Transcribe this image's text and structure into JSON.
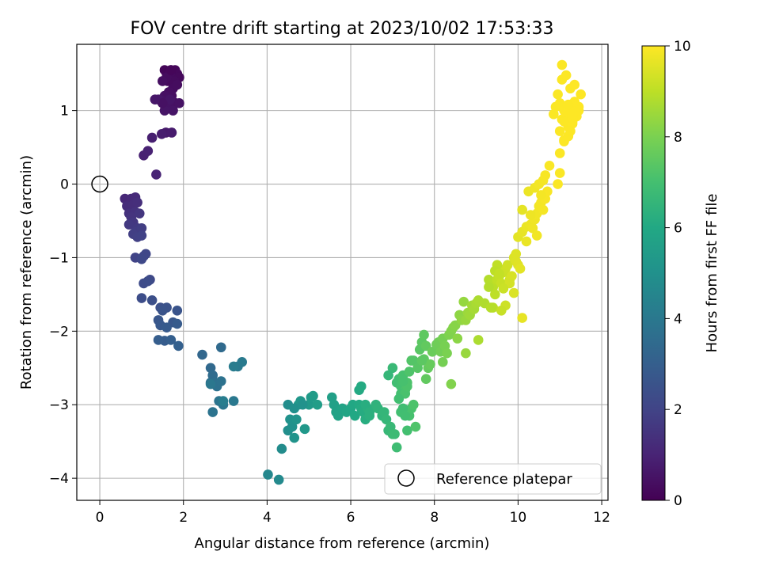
{
  "chart_data": {
    "type": "scatter",
    "title": "FOV centre drift starting at 2023/10/02 17:53:33",
    "xlabel": "Angular distance from reference (arcmin)",
    "ylabel": "Rotation from reference (arcmin)",
    "xlim": [
      -0.55,
      12.15
    ],
    "ylim": [
      -4.3,
      1.9
    ],
    "xticks": [
      0,
      2,
      4,
      6,
      8,
      10,
      12
    ],
    "xtick_labels": [
      "0",
      "2",
      "4",
      "6",
      "8",
      "10",
      "12"
    ],
    "yticks": [
      -4,
      -3,
      -2,
      -1,
      0,
      1
    ],
    "ytick_labels": [
      "−4",
      "−3",
      "−2",
      "−1",
      "0",
      "1"
    ],
    "grid": true,
    "legend": {
      "placement": "lower-right",
      "entries": [
        "Reference platepar"
      ]
    },
    "colorbar": {
      "label": "Hours from first FF file",
      "range": [
        0,
        10
      ],
      "ticks": [
        0,
        2,
        4,
        6,
        8,
        10
      ],
      "tick_labels": [
        "0",
        "2",
        "4",
        "6",
        "8",
        "10"
      ],
      "colormap": "viridis"
    },
    "reference_point": {
      "x": 0,
      "y": 0,
      "label": "Reference platepar"
    },
    "series": [
      {
        "x": [
          1.55,
          1.6,
          1.7,
          1.75,
          1.8,
          1.85,
          1.9,
          1.62,
          1.68,
          1.78,
          1.6,
          1.75,
          1.85,
          1.5,
          1.65,
          1.72,
          1.82,
          1.55,
          1.7,
          1.9,
          1.45,
          1.6,
          1.75,
          1.55,
          1.68,
          1.4,
          1.58,
          1.72,
          1.48,
          1.25,
          1.05,
          1.15,
          1.35,
          1.5,
          1.7,
          1.32,
          0.6,
          0.75,
          0.85,
          0.65,
          0.8,
          0.9,
          0.7,
          0.85,
          0.75,
          0.95,
          0.8,
          0.7,
          0.9,
          0.85,
          1.0,
          0.8,
          0.9,
          1.0,
          0.85,
          1.05,
          1.1,
          1.0,
          1.2,
          1.05,
          1.15,
          1.0,
          1.25,
          1.45,
          1.6,
          1.5,
          1.85,
          1.4,
          1.75,
          1.45,
          1.6,
          1.85,
          1.55,
          1.4,
          1.7,
          1.88,
          2.45,
          2.65,
          2.7,
          2.9,
          2.65,
          2.75,
          2.8,
          2.9,
          2.7,
          2.85,
          2.95,
          2.65,
          3.2,
          3.3,
          3.4,
          3.2,
          2.95,
          4.02,
          4.28,
          4.35,
          4.5,
          4.6,
          4.55,
          4.65,
          4.7,
          4.75,
          4.8,
          4.9,
          5.0,
          5.05,
          5.1,
          5.2,
          4.5,
          4.65,
          4.85,
          5.55,
          5.6,
          5.65,
          5.7,
          5.8,
          5.9,
          6.0,
          6.05,
          6.1,
          6.2,
          6.25,
          6.3,
          6.35,
          6.4,
          6.45,
          6.2,
          6.25,
          6.35,
          6.45,
          6.6,
          6.65,
          6.75,
          6.8,
          6.85,
          6.9,
          6.95,
          7.0,
          7.05,
          7.1,
          7.0,
          6.9,
          7.2,
          7.35,
          7.4,
          7.45,
          7.25,
          7.3,
          7.5,
          7.55,
          7.1,
          7.15,
          7.2,
          7.25,
          7.3,
          7.35,
          7.4,
          7.45,
          7.2,
          7.3,
          7.15,
          7.35,
          7.25,
          7.5,
          7.6,
          7.65,
          7.7,
          7.75,
          7.8,
          7.85,
          7.9,
          7.95,
          7.8,
          7.7,
          8.05,
          8.1,
          8.15,
          8.2,
          8.25,
          8.3,
          8.35,
          8.4,
          8.45,
          8.5,
          8.55,
          8.6,
          8.65,
          8.7,
          8.75,
          8.8,
          8.85,
          8.9,
          8.95,
          9.0,
          9.05,
          8.4,
          8.2,
          8.75,
          9.05,
          7.75,
          9.2,
          9.3,
          9.35,
          9.4,
          9.45,
          9.5,
          9.55,
          9.6,
          9.65,
          9.7,
          9.75,
          9.8,
          9.85,
          9.9,
          9.95,
          10.0,
          9.3,
          9.5,
          9.7,
          9.9,
          9.4,
          9.6,
          9.8,
          9.45,
          9.55,
          9.65,
          10.05,
          9.35,
          10.1,
          9.95,
          10.0,
          10.1,
          10.2,
          10.3,
          10.4,
          10.45,
          10.5,
          10.55,
          10.6,
          10.65,
          10.7,
          10.35,
          10.45,
          10.55,
          10.25,
          10.4,
          10.5,
          10.6,
          10.3,
          10.2,
          10.65,
          10.75,
          10.1,
          10.85,
          10.9,
          11.0,
          11.05,
          11.1,
          11.15,
          11.2,
          11.25,
          11.3,
          11.35,
          11.4,
          11.45,
          11.5,
          11.0,
          11.1,
          11.2,
          11.3,
          11.4,
          10.95,
          11.05,
          11.15,
          11.25,
          11.35,
          11.45,
          11.0,
          11.1,
          11.2,
          11.3,
          11.35,
          11.05,
          11.25,
          11.1,
          11.3,
          10.95,
          11.0,
          11.2
        ],
        "y": [
          1.55,
          1.5,
          1.55,
          1.45,
          1.55,
          1.5,
          1.45,
          1.4,
          1.5,
          1.4,
          1.45,
          1.3,
          1.35,
          1.4,
          1.25,
          1.2,
          1.1,
          1.2,
          1.1,
          1.1,
          1.15,
          1.05,
          1.0,
          1.0,
          1.15,
          1.15,
          0.7,
          0.7,
          0.68,
          0.63,
          0.39,
          0.45,
          0.13,
          1.1,
          1.55,
          1.15,
          -0.2,
          -0.2,
          -0.18,
          -0.3,
          -0.28,
          -0.25,
          -0.4,
          -0.38,
          -0.45,
          -0.4,
          -0.52,
          -0.55,
          -0.6,
          -0.65,
          -0.6,
          -0.68,
          -0.72,
          -0.7,
          -1.0,
          -0.98,
          -0.95,
          -1.02,
          -1.3,
          -1.35,
          -1.32,
          -1.55,
          -1.58,
          -1.68,
          -1.68,
          -1.72,
          -1.72,
          -1.85,
          -1.88,
          -1.92,
          -1.95,
          -1.9,
          -2.13,
          -2.12,
          -2.12,
          -2.2,
          -2.32,
          -2.5,
          -2.6,
          -2.22,
          -2.7,
          -2.7,
          -2.75,
          -2.68,
          -3.1,
          -2.95,
          -3.0,
          -2.72,
          -2.95,
          -2.48,
          -2.42,
          -2.48,
          -2.95,
          -3.95,
          -4.02,
          -3.6,
          -3.35,
          -3.3,
          -3.2,
          -3.45,
          -3.2,
          -3.0,
          -2.95,
          -3.33,
          -3.0,
          -2.9,
          -2.88,
          -3.0,
          -3.0,
          -3.05,
          -3.0,
          -2.9,
          -3.0,
          -3.1,
          -3.15,
          -3.05,
          -3.1,
          -3.05,
          -3.0,
          -3.15,
          -3.0,
          -3.05,
          -3.1,
          -3.2,
          -3.05,
          -3.15,
          -2.8,
          -2.75,
          -3.0,
          -3.1,
          -3.0,
          -3.05,
          -3.15,
          -3.1,
          -3.2,
          -3.35,
          -3.3,
          -3.4,
          -3.4,
          -3.58,
          -2.5,
          -2.6,
          -3.1,
          -3.35,
          -3.15,
          -3.05,
          -3.05,
          -3.15,
          -3.0,
          -3.3,
          -2.7,
          -2.65,
          -2.75,
          -2.6,
          -2.8,
          -2.7,
          -2.55,
          -2.4,
          -2.85,
          -2.85,
          -2.92,
          -2.75,
          -2.68,
          -2.4,
          -2.5,
          -2.25,
          -2.15,
          -2.38,
          -2.2,
          -2.5,
          -2.45,
          -2.28,
          -2.65,
          -2.4,
          -2.18,
          -2.15,
          -2.28,
          -2.1,
          -2.2,
          -2.3,
          -2.05,
          -2.0,
          -1.95,
          -1.92,
          -2.1,
          -1.78,
          -1.85,
          -1.6,
          -1.85,
          -1.75,
          -1.78,
          -1.65,
          -1.7,
          -1.62,
          -1.58,
          -2.72,
          -2.42,
          -2.3,
          -2.12,
          -2.05,
          -1.62,
          -1.3,
          -1.35,
          -1.4,
          -1.5,
          -1.3,
          -1.25,
          -1.35,
          -1.2,
          -1.15,
          -1.1,
          -1.3,
          -1.25,
          -1.0,
          -1.05,
          -1.1,
          -1.4,
          -1.1,
          -1.65,
          -1.48,
          -1.68,
          -1.72,
          -1.35,
          -1.18,
          -1.22,
          -1.42,
          -1.15,
          -1.68,
          -1.82,
          -0.95,
          -0.72,
          -0.65,
          -0.58,
          -0.55,
          -0.48,
          -0.4,
          -0.3,
          -0.25,
          -0.35,
          -0.2,
          -0.1,
          -0.6,
          -0.7,
          -0.15,
          -0.1,
          -0.05,
          0.0,
          0.05,
          -0.42,
          -0.78,
          0.12,
          0.25,
          -0.35,
          0.95,
          1.05,
          1.1,
          0.88,
          1.0,
          0.95,
          1.05,
          1.08,
          0.85,
          1.02,
          0.98,
          1.05,
          1.22,
          0.72,
          0.6,
          0.78,
          0.82,
          0.92,
          1.22,
          1.42,
          1.48,
          1.3,
          1.12,
          1.0,
          0.42,
          0.58,
          0.65,
          0.9,
          1.35,
          1.62,
          0.72,
          0.85,
          0.95,
          0.0,
          0.15,
          1.08
        ],
        "c": [
          0.1,
          0.12,
          0.14,
          0.16,
          0.18,
          0.2,
          0.22,
          0.24,
          0.26,
          0.28,
          0.3,
          0.32,
          0.34,
          0.36,
          0.38,
          0.4,
          0.42,
          0.44,
          0.46,
          0.48,
          0.5,
          0.52,
          0.54,
          0.56,
          0.58,
          0.62,
          0.7,
          0.75,
          0.8,
          0.85,
          0.9,
          0.95,
          1.0,
          0.45,
          0.15,
          0.6,
          1.1,
          1.15,
          1.2,
          1.25,
          1.3,
          1.35,
          1.4,
          1.45,
          1.5,
          1.55,
          1.6,
          1.65,
          1.7,
          1.75,
          1.8,
          1.85,
          1.9,
          1.95,
          2.0,
          2.05,
          2.1,
          2.15,
          2.2,
          2.25,
          2.3,
          2.35,
          2.4,
          2.45,
          2.5,
          2.55,
          2.6,
          2.65,
          2.7,
          2.75,
          2.8,
          2.85,
          2.9,
          2.95,
          3.0,
          3.05,
          3.3,
          3.4,
          3.5,
          3.45,
          3.6,
          3.65,
          3.7,
          3.75,
          3.8,
          3.85,
          3.9,
          3.95,
          4.0,
          4.05,
          4.1,
          4.15,
          4.2,
          4.6,
          4.7,
          4.8,
          4.9,
          5.0,
          5.05,
          5.1,
          5.15,
          5.2,
          5.25,
          5.3,
          5.35,
          5.4,
          5.45,
          5.5,
          4.85,
          4.95,
          5.05,
          5.6,
          5.65,
          5.7,
          5.75,
          5.8,
          5.85,
          5.9,
          5.95,
          6.0,
          6.05,
          6.1,
          6.15,
          6.2,
          6.25,
          6.3,
          6.05,
          6.1,
          6.2,
          6.3,
          6.4,
          6.45,
          6.5,
          6.55,
          6.6,
          6.65,
          6.7,
          6.75,
          6.8,
          6.85,
          6.7,
          6.6,
          6.95,
          7.0,
          7.05,
          7.1,
          6.9,
          6.95,
          7.15,
          7.2,
          6.9,
          6.95,
          7.0,
          7.05,
          7.1,
          7.15,
          7.2,
          7.25,
          7.0,
          7.1,
          6.95,
          7.15,
          7.05,
          7.3,
          7.35,
          7.4,
          7.45,
          7.5,
          7.55,
          7.6,
          7.65,
          7.7,
          7.55,
          7.45,
          7.75,
          7.8,
          7.85,
          7.9,
          7.95,
          8.0,
          8.05,
          8.1,
          8.15,
          8.2,
          8.25,
          8.3,
          8.35,
          8.4,
          8.45,
          8.5,
          8.55,
          8.6,
          8.65,
          8.7,
          8.75,
          8.1,
          7.9,
          8.45,
          8.75,
          7.5,
          8.8,
          8.85,
          8.9,
          8.95,
          9.0,
          9.05,
          9.1,
          9.15,
          9.2,
          9.25,
          9.3,
          9.35,
          9.4,
          9.45,
          9.5,
          9.55,
          8.85,
          9.05,
          9.25,
          9.45,
          8.95,
          9.15,
          9.35,
          9.0,
          9.1,
          9.2,
          9.6,
          8.9,
          9.65,
          9.5,
          9.6,
          9.65,
          9.7,
          9.75,
          9.8,
          9.82,
          9.84,
          9.86,
          9.88,
          9.9,
          9.92,
          9.78,
          9.82,
          9.86,
          9.74,
          9.8,
          9.84,
          9.88,
          9.76,
          9.7,
          9.9,
          9.94,
          9.62,
          9.95,
          9.96,
          9.97,
          9.98,
          9.99,
          10.0,
          10.0,
          10.0,
          10.0,
          10.0,
          10.0,
          10.0,
          10.0,
          9.97,
          9.98,
          9.99,
          10.0,
          10.0,
          9.96,
          9.97,
          9.98,
          9.99,
          10.0,
          10.0,
          9.97,
          9.98,
          9.99,
          10.0,
          10.0,
          9.97,
          9.99,
          9.98,
          10.0,
          9.95,
          9.96,
          9.99
        ]
      }
    ]
  }
}
